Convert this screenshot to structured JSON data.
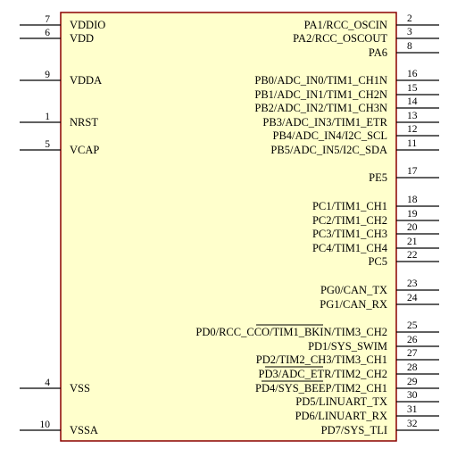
{
  "component": {
    "body_fill": "#ffffcc",
    "body_stroke": "#8b0000",
    "left_pins": [
      {
        "num": "7",
        "name": "VDDIO"
      },
      {
        "num": "6",
        "name": "VDD"
      },
      {
        "num": "9",
        "name": "VDDA"
      },
      {
        "num": "1",
        "name": "NRST"
      },
      {
        "num": "5",
        "name": "VCAP"
      },
      {
        "num": "4",
        "name": "VSS"
      },
      {
        "num": "10",
        "name": "VSSA"
      }
    ],
    "right_pins": [
      {
        "num": "2",
        "name": "PA1/RCC_OSCIN"
      },
      {
        "num": "3",
        "name": "PA2/RCC_OSCOUT"
      },
      {
        "num": "8",
        "name": "PA6"
      },
      {
        "num": "16",
        "name": "PB0/ADC_IN0/TIM1_CH1N"
      },
      {
        "num": "15",
        "name": "PB1/ADC_IN1/TIM1_CH2N"
      },
      {
        "num": "14",
        "name": "PB2/ADC_IN2/TIM1_CH3N"
      },
      {
        "num": "13",
        "name": "PB3/ADC_IN3/TIM1_ETR"
      },
      {
        "num": "12",
        "name": "PB4/ADC_IN4/I2C_SCL"
      },
      {
        "num": "11",
        "name": "PB5/ADC_IN5/I2C_SDA"
      },
      {
        "num": "17",
        "name": "PE5"
      },
      {
        "num": "18",
        "name": "PC1/TIM1_CH1"
      },
      {
        "num": "19",
        "name": "PC2/TIM1_CH2"
      },
      {
        "num": "20",
        "name": "PC3/TIM1_CH3"
      },
      {
        "num": "21",
        "name": "PC4/TIM1_CH4"
      },
      {
        "num": "22",
        "name": "PC5"
      },
      {
        "num": "23",
        "name": "PG0/CAN_TX"
      },
      {
        "num": "24",
        "name": "PG1/CAN_RX"
      },
      {
        "num": "25",
        "name": "PD0/RCC_CCO/TIM1_BKIN/TIM3_CH2"
      },
      {
        "num": "26",
        "name": "PD1/SYS_SWIM"
      },
      {
        "num": "27",
        "name": "PD2/TIM2_CH3/TIM3_CH1"
      },
      {
        "num": "28",
        "name": "PD3/ADC_ETR/TIM2_CH2"
      },
      {
        "num": "29",
        "name": "PD4/SYS_BEEP/TIM2_CH1"
      },
      {
        "num": "30",
        "name": "PD5/LINUART_TX"
      },
      {
        "num": "31",
        "name": "PD6/LINUART_RX"
      },
      {
        "num": "32",
        "name": "PD7/SYS_TLI"
      }
    ]
  }
}
